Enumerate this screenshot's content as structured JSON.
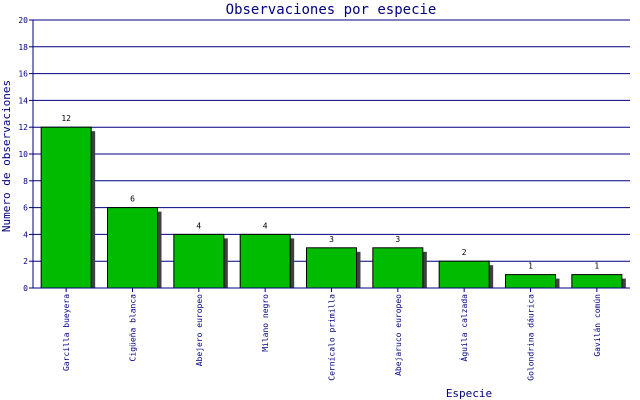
{
  "chart_data": {
    "type": "bar",
    "title": "Observaciones por especie",
    "xlabel": "Especie",
    "ylabel": "Numero de observaciones",
    "categories": [
      "Garcilla bueyera",
      "Cigüeña blanca",
      "Abejero europeo",
      "Milano negro",
      "Cernícalo primilla",
      "Abejaruco europeo",
      "Águila calzada",
      "Golondrina dáurica",
      "Gavilán común"
    ],
    "values": [
      12,
      6,
      4,
      4,
      3,
      3,
      2,
      1,
      1
    ],
    "ylim": [
      0,
      20
    ],
    "yticks": [
      0,
      2,
      4,
      6,
      8,
      10,
      12,
      14,
      16,
      18,
      20
    ],
    "grid": true,
    "data_labels": true,
    "colors": {
      "bar": "#00bb00",
      "bar_edge": "#000000",
      "shadow": "#404040",
      "title": "#000080",
      "grid": "#000080",
      "axis_text": "#000080",
      "value_text": "#000000",
      "background": "#ffffff"
    }
  }
}
